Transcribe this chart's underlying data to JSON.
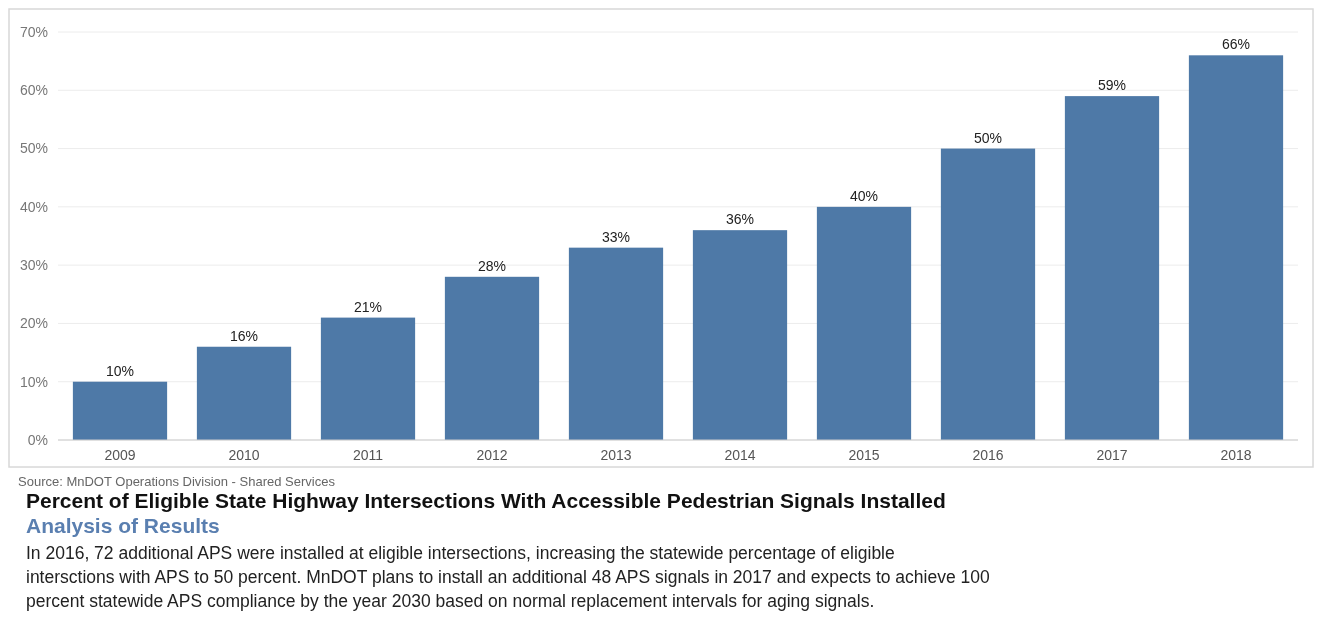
{
  "chart_data": {
    "type": "bar",
    "title": "Percent of Eligible State Highway Intersections With Accessible Pedestrian Signals Installed",
    "subtitle": "Analysis of Results",
    "categories": [
      "2009",
      "2010",
      "2011",
      "2012",
      "2013",
      "2014",
      "2015",
      "2016",
      "2017",
      "2018"
    ],
    "values": [
      10,
      16,
      21,
      28,
      33,
      36,
      40,
      50,
      59,
      66
    ],
    "color": "#4e79a7",
    "ylim": [
      0,
      70
    ],
    "yticks": [
      {
        "value": 0,
        "label": "0%"
      },
      {
        "value": 10,
        "label": "10%"
      },
      {
        "value": 20,
        "label": "20%"
      },
      {
        "value": 30,
        "label": "30%"
      },
      {
        "value": 40,
        "label": "40%"
      },
      {
        "value": 50,
        "label": "50%"
      },
      {
        "value": 60,
        "label": "60%"
      },
      {
        "value": 70,
        "label": "70%"
      }
    ],
    "value_labels": [
      "10%",
      "16%",
      "21%",
      "28%",
      "33%",
      "36%",
      "40%",
      "50%",
      "59%",
      "66%"
    ],
    "grid": "y",
    "annotations": [
      "Source: MnDOT Operations Division - Shared Services",
      "In 2016, 72 additional APS were installed at eligible intersections, increasing the statewide percentage of eligible intersctions with APS to 50 percent. MnDOT plans to install an additional 48 APS signals in 2017 and expects to achieve 100 percent statewide APS compliance by the year 2030 based on normal replacement intervals for aging signals."
    ]
  }
}
